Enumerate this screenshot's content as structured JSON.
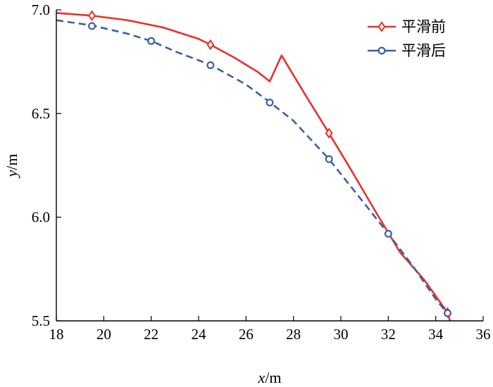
{
  "chart_data": {
    "type": "line",
    "xlabel": {
      "var": "x",
      "unit": "/m"
    },
    "ylabel": {
      "var": "y",
      "unit": "/m"
    },
    "xlim": [
      18,
      36
    ],
    "ylim": [
      5.5,
      7.0
    ],
    "xticks": [
      18,
      20,
      22,
      24,
      26,
      28,
      30,
      32,
      34,
      36
    ],
    "yticks": [
      5.5,
      6.0,
      6.5,
      7.0
    ],
    "ytick_labels": [
      "5.5",
      "6.0",
      "6.5",
      "7.0"
    ],
    "legend_position": "top-right",
    "series": [
      {
        "name": "平滑前",
        "color": "#e8312b",
        "line_style": "solid",
        "marker": "diamond",
        "points": [
          [
            18.0,
            6.985
          ],
          [
            19.5,
            6.972
          ],
          [
            21.0,
            6.95
          ],
          [
            22.5,
            6.915
          ],
          [
            24.0,
            6.86
          ],
          [
            24.5,
            6.832
          ],
          [
            25.5,
            6.77
          ],
          [
            26.5,
            6.7
          ],
          [
            27.0,
            6.655
          ],
          [
            27.5,
            6.78
          ],
          [
            28.5,
            6.59
          ],
          [
            29.5,
            6.405
          ],
          [
            30.5,
            6.215
          ],
          [
            31.5,
            6.02
          ],
          [
            32.5,
            5.83
          ],
          [
            33.5,
            5.7
          ],
          [
            34.5,
            5.54
          ],
          [
            34.6,
            5.5
          ]
        ],
        "markers": [
          [
            19.5,
            6.972
          ],
          [
            24.5,
            6.832
          ],
          [
            29.5,
            6.405
          ],
          [
            34.5,
            5.54
          ]
        ]
      },
      {
        "name": "平滑后",
        "color": "#3a5fa8",
        "line_style": "dashed",
        "marker": "circle",
        "points": [
          [
            18.0,
            6.95
          ],
          [
            19.5,
            6.925
          ],
          [
            21.0,
            6.885
          ],
          [
            22.0,
            6.85
          ],
          [
            23.0,
            6.8
          ],
          [
            24.5,
            6.735
          ],
          [
            26.0,
            6.64
          ],
          [
            27.0,
            6.555
          ],
          [
            28.0,
            6.465
          ],
          [
            29.5,
            6.28
          ],
          [
            31.0,
            6.065
          ],
          [
            32.0,
            5.92
          ],
          [
            33.0,
            5.77
          ],
          [
            34.0,
            5.605
          ],
          [
            34.5,
            5.535
          ]
        ],
        "markers": [
          [
            19.5,
            6.922
          ],
          [
            22.0,
            6.85
          ],
          [
            24.5,
            6.733
          ],
          [
            27.0,
            6.553
          ],
          [
            29.5,
            6.28
          ],
          [
            32.0,
            5.92
          ],
          [
            34.5,
            5.537
          ]
        ]
      }
    ]
  }
}
